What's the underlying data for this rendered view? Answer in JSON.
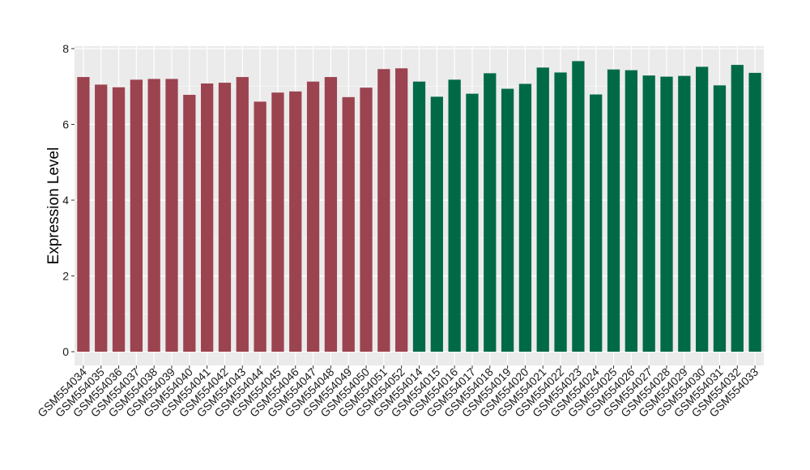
{
  "chart_data": {
    "type": "bar",
    "title": "",
    "xlabel": "",
    "ylabel": "Expression Level",
    "ylim": [
      0,
      8
    ],
    "yticks": [
      0,
      2,
      4,
      6,
      8
    ],
    "grid": true,
    "colors": {
      "group_a": "#9c4350",
      "group_b": "#006a47",
      "panel_bg": "#ebebeb",
      "grid": "#ffffff"
    },
    "categories": [
      "GSM554034",
      "GSM554035",
      "GSM554036",
      "GSM554037",
      "GSM554038",
      "GSM554039",
      "GSM554040",
      "GSM554041",
      "GSM554042",
      "GSM554043",
      "GSM554044",
      "GSM554045",
      "GSM554046",
      "GSM554047",
      "GSM554048",
      "GSM554049",
      "GSM554050",
      "GSM554051",
      "GSM554052",
      "GSM554014",
      "GSM554015",
      "GSM554016",
      "GSM554017",
      "GSM554018",
      "GSM554019",
      "GSM554020",
      "GSM554021",
      "GSM554022",
      "GSM554023",
      "GSM554024",
      "GSM554025",
      "GSM554026",
      "GSM554027",
      "GSM554028",
      "GSM554029",
      "GSM554030",
      "GSM554031",
      "GSM554032",
      "GSM554033"
    ],
    "values": [
      7.25,
      7.05,
      6.98,
      7.18,
      7.2,
      7.2,
      6.78,
      7.08,
      7.1,
      7.25,
      6.6,
      6.84,
      6.87,
      7.13,
      7.25,
      6.72,
      6.97,
      7.46,
      7.48,
      7.13,
      6.73,
      7.18,
      6.81,
      7.35,
      6.94,
      7.07,
      7.5,
      7.37,
      7.67,
      6.79,
      7.45,
      7.43,
      7.29,
      7.26,
      7.28,
      7.52,
      7.03,
      7.57,
      7.36
    ],
    "groups": [
      "a",
      "a",
      "a",
      "a",
      "a",
      "a",
      "a",
      "a",
      "a",
      "a",
      "a",
      "a",
      "a",
      "a",
      "a",
      "a",
      "a",
      "a",
      "a",
      "b",
      "b",
      "b",
      "b",
      "b",
      "b",
      "b",
      "b",
      "b",
      "b",
      "b",
      "b",
      "b",
      "b",
      "b",
      "b",
      "b",
      "b",
      "b",
      "b"
    ]
  }
}
